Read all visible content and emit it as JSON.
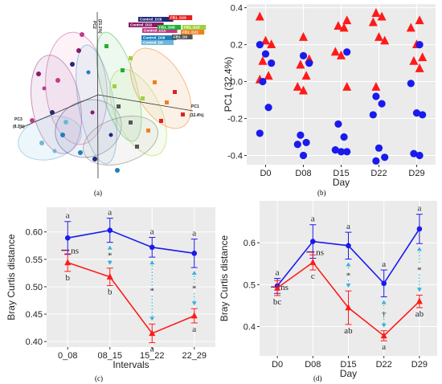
{
  "panels": {
    "a": {
      "caption": "(a)",
      "axes": {
        "pc1": "PC1",
        "pc1_pct": "(32.4%)",
        "pc2": "PC2",
        "pc2_pct": "(21.1%)",
        "pc3": "PC3",
        "pc3_pct": "(8.3%)"
      },
      "legend": [
        {
          "label": "Control_D29",
          "color": "#1f2a7a"
        },
        {
          "label": "Control_D22",
          "color": "#8a1a6a"
        },
        {
          "label": "Control_D15",
          "color": "#c23a8a"
        },
        {
          "label": "Control_D08",
          "color": "#1e7fbf"
        },
        {
          "label": "Control_D0",
          "color": "#6fb6d8"
        },
        {
          "label": "FB1_D29",
          "color": "#e02020"
        },
        {
          "label": "FB1_D08",
          "color": "#20b030"
        },
        {
          "label": "FB1_D15",
          "color": "#a0d040"
        },
        {
          "label": "FB1_D22",
          "color": "#f08020"
        },
        {
          "label": "FB1_D0",
          "color": "#555555"
        }
      ]
    },
    "b": {
      "caption": "(b)"
    },
    "c": {
      "caption": "(c)"
    },
    "d": {
      "caption": "(d)"
    }
  },
  "chart_data": [
    {
      "panel": "b",
      "type": "scatter",
      "ylabel": "PC1 (32.4%)",
      "xlabel": "Day",
      "categories": [
        "D0",
        "D08",
        "D15",
        "D22",
        "D29"
      ],
      "ylim": [
        -0.45,
        0.42
      ],
      "yticks": [
        0.4,
        0.2,
        0.0,
        -0.2,
        -0.4
      ],
      "yticklabels": [
        "0.4",
        "0.2",
        "0.0",
        "-0.2",
        "-0.4"
      ],
      "series": [
        {
          "marker": "triangle",
          "color": "#ff1a1a",
          "points": [
            [
              0,
              0.35
            ],
            [
              0,
              0.22
            ],
            [
              0,
              0.2
            ],
            [
              0,
              0.11
            ],
            [
              0,
              0.03
            ],
            [
              0,
              0.01
            ],
            [
              1,
              0.24
            ],
            [
              1,
              0.12
            ],
            [
              1,
              0.09
            ],
            [
              1,
              0.03
            ],
            [
              1,
              -0.03
            ],
            [
              1,
              -0.05
            ],
            [
              2,
              0.33
            ],
            [
              2,
              0.3
            ],
            [
              2,
              0.29
            ],
            [
              2,
              0.16
            ],
            [
              2,
              0.14
            ],
            [
              2,
              -0.03
            ],
            [
              3,
              0.37
            ],
            [
              3,
              0.35
            ],
            [
              3,
              0.32
            ],
            [
              3,
              0.24
            ],
            [
              3,
              0.22
            ],
            [
              3,
              -0.03
            ],
            [
              4,
              0.33
            ],
            [
              4,
              0.29
            ],
            [
              4,
              0.2
            ],
            [
              4,
              0.13
            ],
            [
              4,
              0.11
            ],
            [
              4,
              0.07
            ]
          ]
        },
        {
          "marker": "circle",
          "color": "#1a1aee",
          "points": [
            [
              0,
              0.2
            ],
            [
              0,
              0.15
            ],
            [
              0,
              0.1
            ],
            [
              0,
              0.0
            ],
            [
              0,
              -0.14
            ],
            [
              0,
              -0.28
            ],
            [
              1,
              0.14
            ],
            [
              1,
              0.1
            ],
            [
              1,
              -0.29
            ],
            [
              1,
              -0.33
            ],
            [
              1,
              -0.34
            ],
            [
              1,
              -0.4
            ],
            [
              2,
              0.16
            ],
            [
              2,
              -0.23
            ],
            [
              2,
              -0.3
            ],
            [
              2,
              -0.37
            ],
            [
              2,
              -0.38
            ],
            [
              2,
              -0.38
            ],
            [
              3,
              -0.08
            ],
            [
              3,
              -0.12
            ],
            [
              3,
              -0.18
            ],
            [
              3,
              -0.36
            ],
            [
              3,
              -0.41
            ],
            [
              3,
              -0.43
            ],
            [
              4,
              0.2
            ],
            [
              4,
              -0.01
            ],
            [
              4,
              -0.17
            ],
            [
              4,
              -0.18
            ],
            [
              4,
              -0.39
            ],
            [
              4,
              -0.4
            ]
          ]
        }
      ]
    },
    {
      "panel": "c",
      "type": "line",
      "ylabel": "Bray Curtis distance",
      "xlabel": "Intervals",
      "categories": [
        "0_08",
        "08_15",
        "15_22",
        "22_29"
      ],
      "ylim": [
        0.39,
        0.645
      ],
      "yticks": [
        0.4,
        0.45,
        0.5,
        0.55,
        0.6
      ],
      "yticklabels": [
        "0.40",
        "0.45",
        "0.50",
        "0.55",
        "0.60"
      ],
      "series": [
        {
          "color": "#1a1aee",
          "marker": "circle",
          "values": [
            0.589,
            0.603,
            0.572,
            0.561
          ],
          "err": [
            0.03,
            0.022,
            0.018,
            0.026
          ],
          "letters": [
            "a",
            "a",
            "a",
            "a"
          ],
          "letter_pos": "above"
        },
        {
          "color": "#ff1a1a",
          "marker": "triangle",
          "values": [
            0.544,
            0.518,
            0.415,
            0.447
          ],
          "err": [
            0.016,
            0.016,
            0.017,
            0.013
          ],
          "letters": [
            "b",
            "b",
            "a",
            "a"
          ],
          "letter_pos": "below"
        }
      ],
      "comparisons": [
        {
          "index": 0,
          "label": "ns",
          "type": "ns"
        },
        {
          "index": 1,
          "label": "*",
          "type": "arrow"
        },
        {
          "index": 2,
          "label": "*",
          "type": "arrow"
        },
        {
          "index": 3,
          "label": "*",
          "type": "arrow"
        }
      ]
    },
    {
      "panel": "d",
      "type": "line",
      "ylabel": "Bray Curtis distance",
      "xlabel": "Day",
      "categories": [
        "D0",
        "D08",
        "D15",
        "D22",
        "D29"
      ],
      "ylim": [
        0.33,
        0.7
      ],
      "yticks": [
        0.4,
        0.5,
        0.6
      ],
      "yticklabels": [
        "0.4",
        "0.5",
        "0.6"
      ],
      "series": [
        {
          "color": "#1a1aee",
          "marker": "circle",
          "values": [
            0.497,
            0.603,
            0.593,
            0.503,
            0.633
          ],
          "err": [
            0.018,
            0.04,
            0.032,
            0.032,
            0.035
          ],
          "letters": [
            "a",
            "a",
            "a",
            "a",
            "a"
          ],
          "letter_pos": "above"
        },
        {
          "color": "#ff1a1a",
          "marker": "triangle",
          "values": [
            0.492,
            0.553,
            0.445,
            0.378,
            0.46
          ],
          "err": [
            0.018,
            0.018,
            0.04,
            0.012,
            0.015
          ],
          "letters": [
            "bc",
            "c",
            "ab",
            "a",
            "ab"
          ],
          "letter_pos": "below"
        }
      ],
      "comparisons": [
        {
          "index": 0,
          "label": "ns",
          "type": "ns"
        },
        {
          "index": 1,
          "label": "ns",
          "type": "ns"
        },
        {
          "index": 2,
          "label": "*",
          "type": "arrow"
        },
        {
          "index": 3,
          "label": "†",
          "type": "arrow"
        },
        {
          "index": 4,
          "label": "*",
          "type": "arrow"
        }
      ]
    }
  ]
}
